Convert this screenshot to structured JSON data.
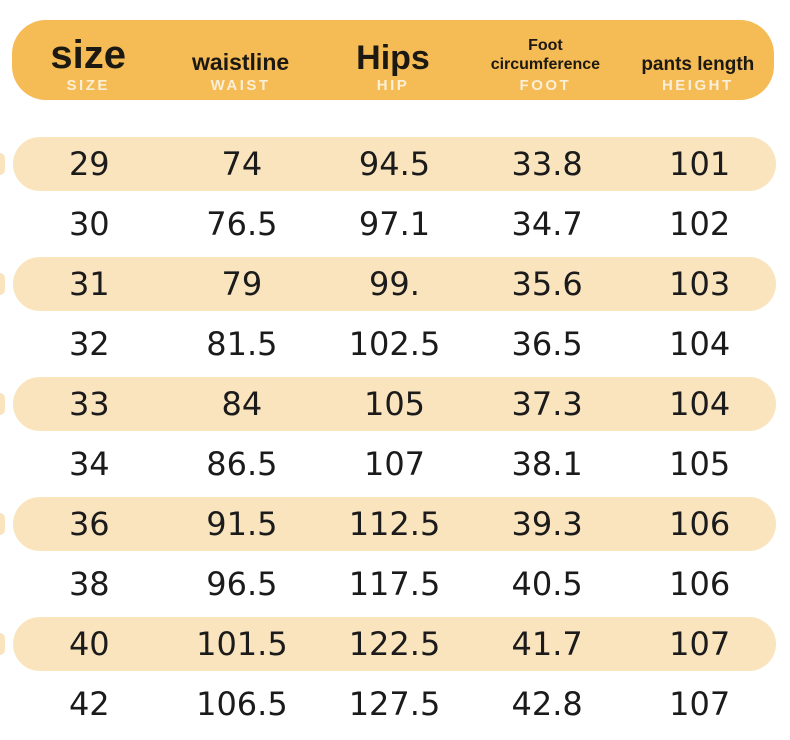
{
  "chart_data": {
    "type": "table",
    "columns": [
      {
        "label": "size",
        "sublabel": "SIZE"
      },
      {
        "label": "waistline",
        "sublabel": "WAIST"
      },
      {
        "label": "Hips",
        "sublabel": "HIP"
      },
      {
        "label": "Foot circumference",
        "sublabel": "FOOT"
      },
      {
        "label": "pants length",
        "sublabel": "HEIGHT"
      }
    ],
    "rows": [
      [
        "29",
        "74",
        "94.5",
        "33.8",
        "101"
      ],
      [
        "30",
        "76.5",
        "97.1",
        "34.7",
        "102"
      ],
      [
        "31",
        "79",
        "99.",
        "35.6",
        "103"
      ],
      [
        "32",
        "81.5",
        "102.5",
        "36.5",
        "104"
      ],
      [
        "33",
        "84",
        "105",
        "37.3",
        "104"
      ],
      [
        "34",
        "86.5",
        "107",
        "38.1",
        "105"
      ],
      [
        "36",
        "91.5",
        "112.5",
        "39.3",
        "106"
      ],
      [
        "38",
        "96.5",
        "117.5",
        "40.5",
        "106"
      ],
      [
        "40",
        "101.5",
        "122.5",
        "41.7",
        "107"
      ],
      [
        "42",
        "106.5",
        "127.5",
        "42.8",
        "107"
      ]
    ]
  },
  "colors": {
    "header_bg": "#F5BB55",
    "row_highlight_bg": "#FAE4BE",
    "row_plain_bg": "#FFFFFF",
    "header_label": "#1C1812",
    "header_sublabel": "#FBEFD8",
    "cell_text": "#1B1B1B"
  }
}
